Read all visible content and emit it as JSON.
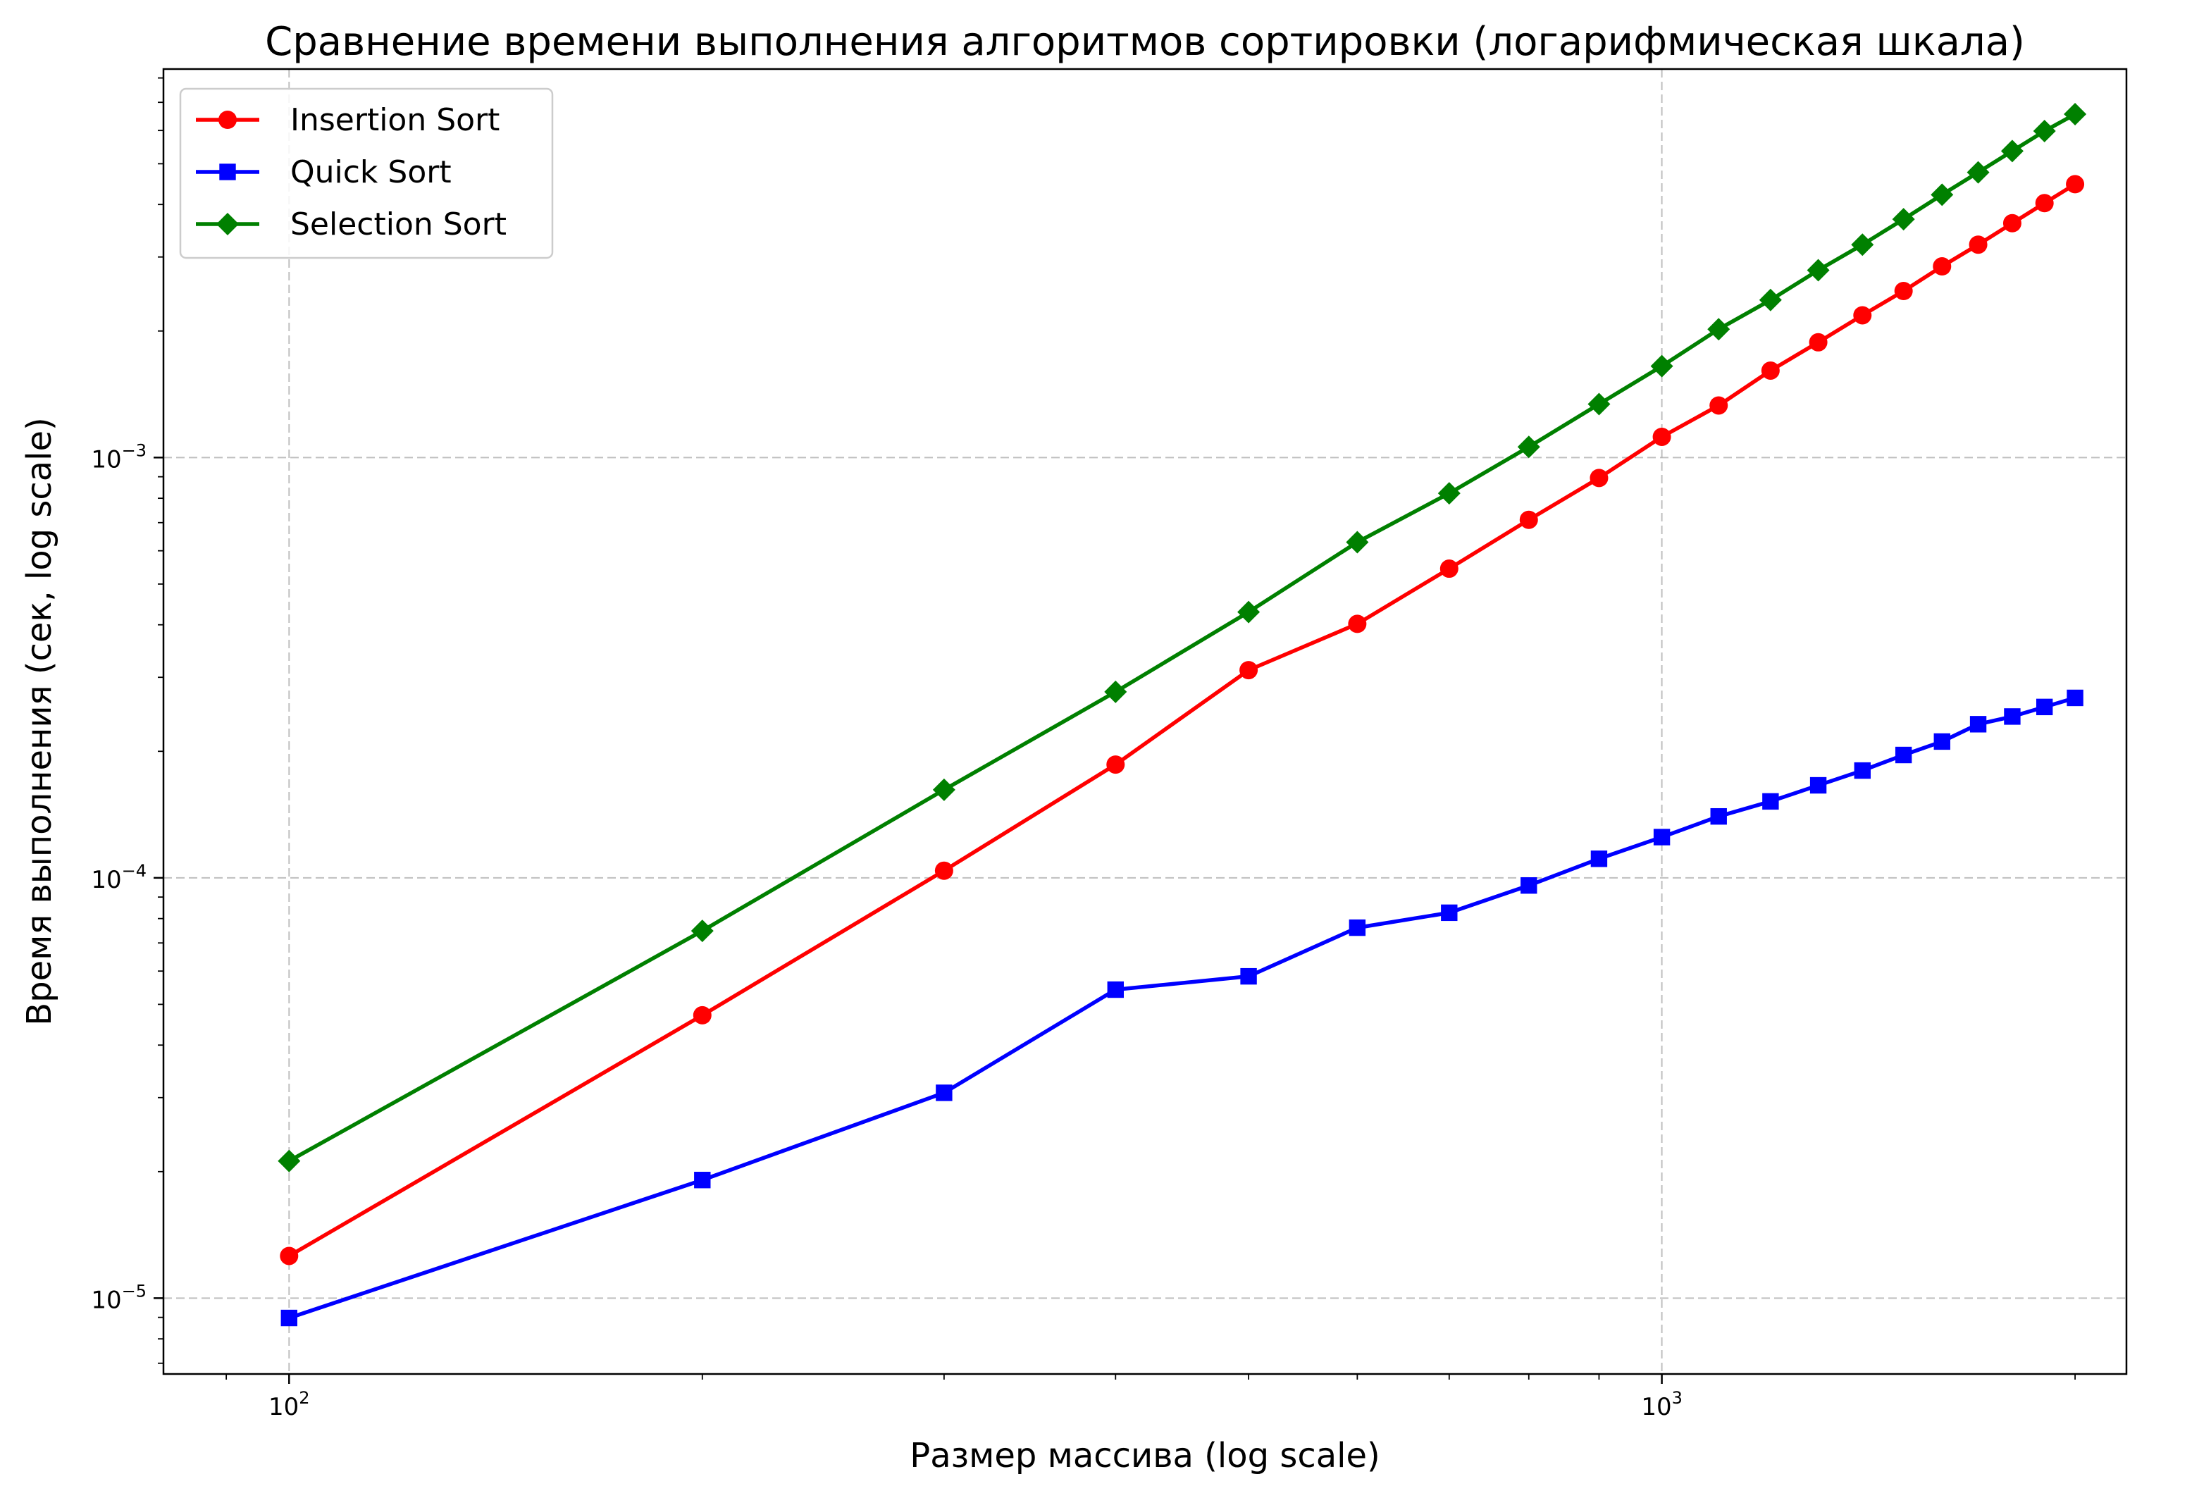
{
  "chart_data": {
    "type": "line",
    "title": "Сравнение времени выполнения алгоритмов сортировки (логарифмическая шкала)",
    "xlabel": "Размер массива (log scale)",
    "ylabel": "Время выполнения (сек, log scale)",
    "xscale": "log",
    "yscale": "log",
    "xlim": [
      81,
      2180
    ],
    "ylim": [
      6.6e-06,
      0.0084
    ],
    "grid": true,
    "legend_position": "top-left",
    "x_ticks": [
      {
        "value": 100,
        "base": "10",
        "exp": "2"
      },
      {
        "value": 1000,
        "base": "10",
        "exp": "3"
      }
    ],
    "y_ticks": [
      {
        "value": 1e-05,
        "base": "10",
        "exp": "−5"
      },
      {
        "value": 0.0001,
        "base": "10",
        "exp": "−4"
      },
      {
        "value": 0.001,
        "base": "10",
        "exp": "−3"
      }
    ],
    "x": [
      100,
      200,
      300,
      400,
      500,
      600,
      700,
      800,
      900,
      1000,
      1100,
      1200,
      1300,
      1400,
      1500,
      1600,
      1700,
      1800,
      1900,
      2000
    ],
    "series": [
      {
        "name": "Insertion Sort",
        "color": "#ff0000",
        "marker": "circle",
        "values": [
          1.26e-05,
          4.71e-05,
          0.000104,
          0.000186,
          0.000312,
          0.000402,
          0.000544,
          0.000711,
          0.000894,
          0.00112,
          0.00133,
          0.00161,
          0.00188,
          0.00218,
          0.00249,
          0.00285,
          0.00321,
          0.00361,
          0.00403,
          0.00447
        ]
      },
      {
        "name": "Quick Sort",
        "color": "#0000ff",
        "marker": "square",
        "values": [
          8.97e-06,
          1.91e-05,
          3.08e-05,
          5.42e-05,
          5.83e-05,
          7.61e-05,
          8.26e-05,
          9.59e-05,
          0.000111,
          0.000125,
          0.00014,
          0.000152,
          0.000166,
          0.00018,
          0.000196,
          0.000211,
          0.000232,
          0.000242,
          0.000255,
          0.000268
        ]
      },
      {
        "name": "Selection Sort",
        "color": "#008000",
        "marker": "diamond",
        "values": [
          2.12e-05,
          7.48e-05,
          0.000162,
          0.000277,
          0.000429,
          0.000629,
          0.000822,
          0.00106,
          0.00134,
          0.00165,
          0.00202,
          0.00237,
          0.00279,
          0.00321,
          0.00369,
          0.00422,
          0.00477,
          0.00536,
          0.00598,
          0.00656
        ]
      }
    ]
  }
}
